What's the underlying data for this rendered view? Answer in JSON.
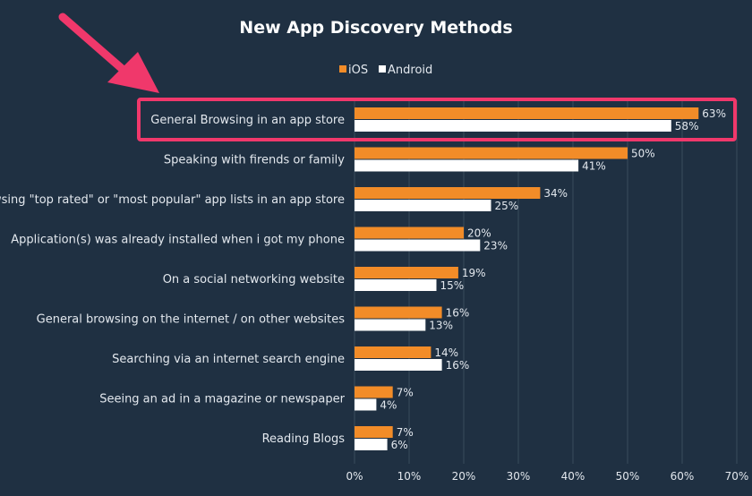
{
  "colors": {
    "background": "#1f3042",
    "ios": "#f28c28",
    "android": "#ffffff",
    "grid": "#3a4b5c",
    "highlight": "#f0386b",
    "arrow": "#f0386b"
  },
  "legend": {
    "placement": "top-center",
    "items": [
      "iOS",
      "Android"
    ]
  },
  "highlight": {
    "category_index": 0,
    "has_arrow": true
  },
  "chart_data": {
    "type": "bar",
    "orientation": "horizontal",
    "title": "New App Discovery Methods",
    "xlabel": "",
    "ylabel": "",
    "xlim": [
      0,
      70
    ],
    "x_ticks": [
      "0%",
      "10%",
      "20%",
      "30%",
      "40%",
      "50%",
      "60%",
      "70%"
    ],
    "grid": true,
    "categories": [
      "General Browsing in an app store",
      "Speaking with firends or family",
      "Browsing \"top rated\" or \"most popular\" app lists in an app store",
      "Application(s) was already installed when i got my phone",
      "On a social networking website",
      "General browsing on the internet / on other websites",
      "Searching via an internet search engine",
      "Seeing an ad in a magazine or newspaper",
      "Reading Blogs"
    ],
    "series": [
      {
        "name": "iOS",
        "values": [
          63,
          50,
          34,
          20,
          19,
          16,
          14,
          7,
          7
        ],
        "labels": [
          "63%",
          "50%",
          "34%",
          "20%",
          "19%",
          "16%",
          "14%",
          "7%",
          "7%"
        ]
      },
      {
        "name": "Android",
        "values": [
          58,
          41,
          25,
          23,
          15,
          13,
          16,
          4,
          6
        ],
        "labels": [
          "58%",
          "41%",
          "25%",
          "23%",
          "15%",
          "13%",
          "16%",
          "4%",
          "6%"
        ]
      }
    ]
  }
}
